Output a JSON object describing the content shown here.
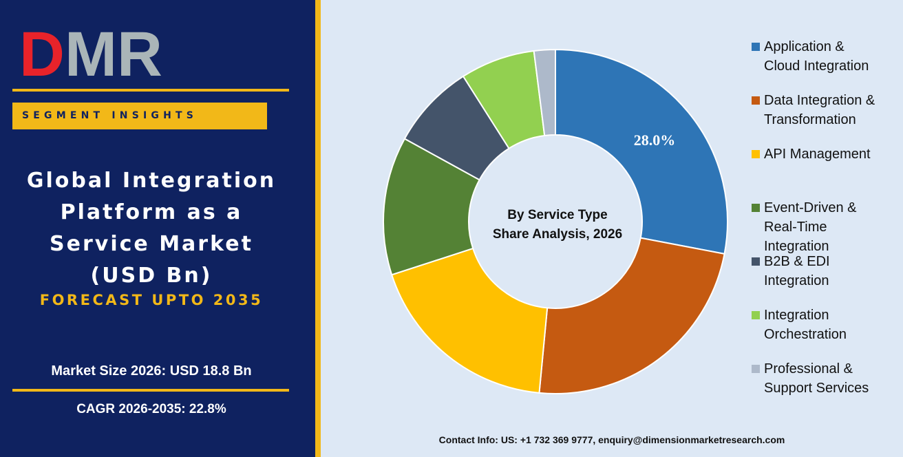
{
  "logo": {
    "text": "DMR",
    "colors": {
      "d": "#e8232a",
      "mr": "#aab5b8"
    }
  },
  "badge": {
    "label": "SEGMENT INSIGHTS"
  },
  "title": {
    "lines": [
      "Global Integration",
      "Platform as a",
      "Service Market",
      "(USD Bn)"
    ]
  },
  "forecast": "FORECAST UPTO 2035",
  "stats": {
    "market_size": "Market Size 2026: USD 18.8 Bn",
    "cagr": "CAGR 2026-2035: 22.8%"
  },
  "contact": "Contact Info: US: +1 732 369 9777, enquiry@dimensionmarketresearch.com",
  "colors": {
    "navy": "#0f2260",
    "gold": "#f2b818",
    "chart_bg": "#dde8f5"
  },
  "chart_data": {
    "type": "pie",
    "style": "donut",
    "center_label": [
      "By Service Type",
      "Share Analysis, 2026"
    ],
    "slices": [
      {
        "name": "Application & Cloud Integration",
        "legend": [
          "Application &",
          "Cloud Integration"
        ],
        "value": 28.0,
        "label": "28.0%",
        "color": "#2e75b6"
      },
      {
        "name": "Data Integration & Transformation",
        "legend": [
          "Data Integration &",
          "Transformation"
        ],
        "value": 23.5,
        "color": "#c55a11"
      },
      {
        "name": "API Management",
        "legend": [
          "API Management"
        ],
        "value": 18.5,
        "color": "#ffc000"
      },
      {
        "name": "Event-Driven & Real-Time Integration",
        "legend": [
          "Event-Driven &",
          "Real-Time",
          "Integration"
        ],
        "value": 13.0,
        "color": "#548235"
      },
      {
        "name": "B2B & EDI Integration",
        "legend": [
          "B2B & EDI",
          "Integration"
        ],
        "value": 8.0,
        "color": "#44546a"
      },
      {
        "name": "Integration Orchestration",
        "legend": [
          "Integration",
          "Orchestration"
        ],
        "value": 7.0,
        "color": "#92d050"
      },
      {
        "name": "Professional & Support Services",
        "legend": [
          "Professional &",
          "Support Services"
        ],
        "value": 2.0,
        "color": "#adb9ca"
      }
    ],
    "legend_position": "right"
  }
}
